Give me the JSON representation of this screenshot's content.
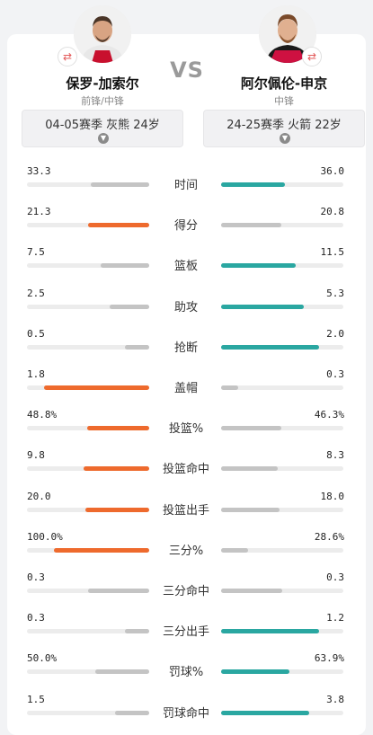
{
  "players": {
    "left": {
      "name": "保罗-加索尔",
      "position": "前锋/中锋",
      "season": "04-05赛季 灰熊 24岁"
    },
    "right": {
      "name": "阿尔佩伦-申京",
      "position": "中锋",
      "season": "24-25赛季 火箭 22岁"
    }
  },
  "vs_label": "VS",
  "colors": {
    "left_win": "#ee6a2d",
    "right_win": "#2aa7a1",
    "lose": "#c4c4c4",
    "track": "#ececec"
  },
  "stats": [
    {
      "label": "时间",
      "left": "33.3",
      "right": "36.0",
      "left_level": 0.48,
      "right_level": 0.52,
      "winner": "right"
    },
    {
      "label": "得分",
      "left": "21.3",
      "right": "20.8",
      "left_level": 0.5,
      "right_level": 0.49,
      "winner": "left"
    },
    {
      "label": "篮板",
      "left": "7.5",
      "right": "11.5",
      "left_level": 0.4,
      "right_level": 0.61,
      "winner": "right"
    },
    {
      "label": "助攻",
      "left": "2.5",
      "right": "5.3",
      "left_level": 0.32,
      "right_level": 0.68,
      "winner": "right"
    },
    {
      "label": "抢断",
      "left": "0.5",
      "right": "2.0",
      "left_level": 0.2,
      "right_level": 0.8,
      "winner": "right"
    },
    {
      "label": "盖帽",
      "left": "1.8",
      "right": "0.3",
      "left_level": 0.86,
      "right_level": 0.14,
      "winner": "left"
    },
    {
      "label": "投篮%",
      "left": "48.8%",
      "right": "46.3%",
      "left_level": 0.51,
      "right_level": 0.49,
      "winner": "left"
    },
    {
      "label": "投篮命中",
      "left": "9.8",
      "right": "8.3",
      "left_level": 0.54,
      "right_level": 0.46,
      "winner": "left"
    },
    {
      "label": "投篮出手",
      "left": "20.0",
      "right": "18.0",
      "left_level": 0.52,
      "right_level": 0.48,
      "winner": "left"
    },
    {
      "label": "三分%",
      "left": "100.0%",
      "right": "28.6%",
      "left_level": 0.78,
      "right_level": 0.22,
      "winner": "left"
    },
    {
      "label": "三分命中",
      "left": "0.3",
      "right": "0.3",
      "left_level": 0.5,
      "right_level": 0.5,
      "winner": "none"
    },
    {
      "label": "三分出手",
      "left": "0.3",
      "right": "1.2",
      "left_level": 0.2,
      "right_level": 0.8,
      "winner": "right"
    },
    {
      "label": "罚球%",
      "left": "50.0%",
      "right": "63.9%",
      "left_level": 0.44,
      "right_level": 0.56,
      "winner": "right"
    },
    {
      "label": "罚球命中",
      "left": "1.5",
      "right": "3.8",
      "left_level": 0.28,
      "right_level": 0.72,
      "winner": "right"
    }
  ]
}
